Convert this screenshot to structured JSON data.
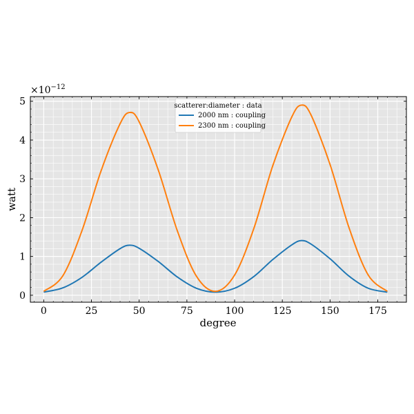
{
  "chart_data": {
    "type": "line",
    "title": "",
    "xlabel": "degree",
    "ylabel": "watt",
    "y_multiplier_label": "×10",
    "y_multiplier_exponent": "−12",
    "xlim": [
      -7,
      190
    ],
    "ylim": [
      -0.18,
      5.12
    ],
    "y_scale": 1e-12,
    "grid": true,
    "background": "#e5e5e5",
    "xticks": [
      0,
      25,
      50,
      75,
      100,
      125,
      150,
      175
    ],
    "xtick_labels": [
      "0",
      "25",
      "50",
      "75",
      "100",
      "125",
      "150",
      "175"
    ],
    "yticks": [
      0,
      1,
      2,
      3,
      4,
      5
    ],
    "ytick_labels": [
      "0",
      "1",
      "2",
      "3",
      "4",
      "5"
    ],
    "legend": {
      "title": "scatterer:diameter : data",
      "placement": "top-center"
    },
    "x": [
      0,
      10,
      20,
      30,
      40,
      45,
      50,
      60,
      70,
      80,
      90,
      100,
      110,
      120,
      130,
      135,
      140,
      150,
      160,
      170,
      180
    ],
    "series": [
      {
        "name": "2000 nm : coupling",
        "color": "#1f77b4",
        "values": [
          0.08,
          0.19,
          0.46,
          0.85,
          1.2,
          1.29,
          1.21,
          0.87,
          0.47,
          0.18,
          0.08,
          0.18,
          0.48,
          0.92,
          1.3,
          1.41,
          1.32,
          0.94,
          0.49,
          0.18,
          0.08
        ]
      },
      {
        "name": "2300 nm : coupling",
        "color": "#ff7f0e",
        "values": [
          0.1,
          0.5,
          1.66,
          3.2,
          4.42,
          4.71,
          4.47,
          3.23,
          1.66,
          0.49,
          0.1,
          0.52,
          1.71,
          3.34,
          4.6,
          4.9,
          4.65,
          3.37,
          1.73,
          0.52,
          0.1
        ]
      }
    ]
  }
}
